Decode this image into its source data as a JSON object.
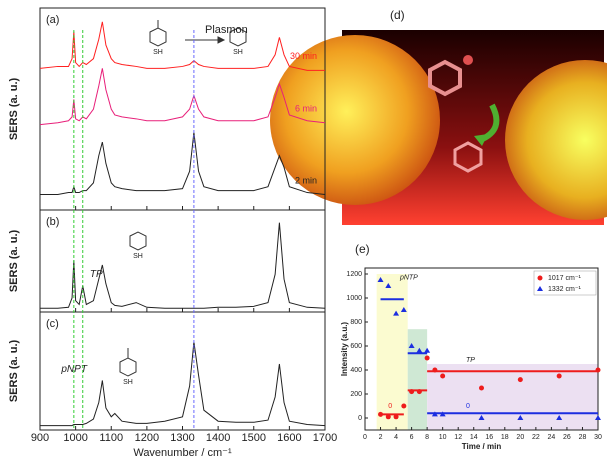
{
  "chart_data": [
    {
      "type": "line",
      "label": "(a)",
      "ylabel": "SERS (a. u.)",
      "ylim": [
        0,
        100
      ],
      "annotation": "Plasmon",
      "molecule_labels": [
        "SH",
        "SH"
      ],
      "x": [
        900,
        950,
        980,
        990,
        995,
        1000,
        1010,
        1020,
        1030,
        1050,
        1065,
        1075,
        1085,
        1100,
        1110,
        1130,
        1170,
        1200,
        1250,
        1300,
        1320,
        1332,
        1345,
        1360,
        1400,
        1450,
        1500,
        1540,
        1560,
        1572,
        1585,
        1600,
        1650,
        1700
      ],
      "reference_lines": [
        {
          "value": 995,
          "color": "#33cc33"
        },
        {
          "value": 1020,
          "color": "#33cc33"
        },
        {
          "value": 1332,
          "color": "#6a6aff"
        }
      ],
      "series": [
        {
          "name": "30 min",
          "color": "#ff2020",
          "values": [
            73,
            74,
            74,
            78,
            92,
            76,
            74,
            76,
            75,
            78,
            88,
            97,
            85,
            78,
            76,
            75,
            74,
            73,
            73,
            74,
            75,
            77,
            75,
            74,
            73,
            73,
            73,
            74,
            80,
            89,
            80,
            74,
            72,
            72
          ]
        },
        {
          "name": "6 min",
          "color": "#e8207a",
          "values": [
            44,
            45,
            46,
            48,
            57,
            47,
            46,
            48,
            47,
            52,
            64,
            73,
            62,
            52,
            49,
            48,
            47,
            46,
            46,
            48,
            52,
            59,
            52,
            48,
            46,
            46,
            46,
            48,
            58,
            65,
            58,
            49,
            46,
            45
          ]
        },
        {
          "name": "2 min",
          "color": "#222222",
          "values": [
            8,
            8,
            9,
            9,
            12,
            9,
            9,
            10,
            10,
            14,
            28,
            35,
            24,
            14,
            12,
            11,
            10,
            10,
            10,
            11,
            20,
            40,
            20,
            12,
            10,
            10,
            10,
            12,
            22,
            28,
            22,
            12,
            9,
            8
          ]
        }
      ]
    },
    {
      "type": "line",
      "label": "(b)",
      "ylabel": "SERS (a. u.)",
      "ylim": [
        0,
        100
      ],
      "molecule_labels": [
        "SH"
      ],
      "x": [
        900,
        950,
        980,
        990,
        995,
        1000,
        1010,
        1020,
        1030,
        1050,
        1065,
        1075,
        1085,
        1100,
        1110,
        1130,
        1170,
        1200,
        1250,
        1300,
        1320,
        1332,
        1345,
        1360,
        1400,
        1450,
        1500,
        1540,
        1560,
        1572,
        1585,
        1600,
        1650,
        1700
      ],
      "series": [
        {
          "name": "TP",
          "color": "#222222",
          "values": [
            4,
            4,
            5,
            15,
            55,
            12,
            8,
            28,
            8,
            12,
            35,
            50,
            30,
            10,
            7,
            6,
            10,
            5,
            4,
            4,
            4,
            4,
            4,
            4,
            5,
            5,
            6,
            10,
            40,
            95,
            35,
            10,
            5,
            4
          ]
        }
      ]
    },
    {
      "type": "line",
      "label": "(c)",
      "ylabel": "SERS (a. u.)",
      "ylim": [
        0,
        100
      ],
      "molecule_labels": [
        "SH"
      ],
      "xlabel": "Wavenumber / cm⁻¹",
      "xlim": [
        900,
        1700
      ],
      "xticks": [
        900,
        1000,
        1100,
        1200,
        1300,
        1400,
        1500,
        1600,
        1700
      ],
      "x": [
        900,
        950,
        980,
        990,
        995,
        1000,
        1010,
        1020,
        1030,
        1050,
        1065,
        1075,
        1085,
        1100,
        1110,
        1130,
        1170,
        1200,
        1250,
        1300,
        1320,
        1332,
        1345,
        1360,
        1400,
        1450,
        1500,
        1540,
        1560,
        1572,
        1585,
        1600,
        1650,
        1700
      ],
      "series": [
        {
          "name": "pNPT",
          "color": "#222222",
          "values": [
            4,
            4,
            4,
            4,
            5,
            5,
            5,
            5,
            6,
            10,
            25,
            45,
            20,
            12,
            15,
            8,
            6,
            6,
            8,
            12,
            40,
            80,
            50,
            18,
            8,
            7,
            7,
            9,
            30,
            60,
            25,
            8,
            5,
            4
          ]
        }
      ]
    },
    {
      "type": "scatter",
      "label": "(e)",
      "xlabel": "Time / min",
      "ylabel": "Intensity (a.u.)",
      "xlim": [
        0,
        30
      ],
      "xticks": [
        0,
        2,
        4,
        6,
        8,
        10,
        12,
        14,
        16,
        18,
        20,
        22,
        24,
        26,
        28,
        30
      ],
      "ylim": [
        -100,
        1250
      ],
      "yticks": [
        0,
        200,
        400,
        600,
        800,
        1000,
        1200
      ],
      "legend": "upper right",
      "annotations": [
        "pNTP",
        "TP",
        "0",
        "0"
      ],
      "regions": [
        {
          "x": [
            1.5,
            5.5
          ],
          "y": [
            -100,
            1200
          ],
          "color": "#fbfbd0"
        },
        {
          "x": [
            5.5,
            8
          ],
          "y": [
            -100,
            740
          ],
          "color": "#cfe8d4"
        },
        {
          "x": [
            8,
            30
          ],
          "y": [
            -100,
            450
          ],
          "color": "#ece0f2"
        }
      ],
      "series": [
        {
          "name": "1017 cm⁻¹",
          "color": "#ee1c1c",
          "marker": "circle",
          "x": [
            2,
            3,
            4,
            5,
            6,
            7,
            8,
            9,
            10,
            15,
            20,
            25,
            30
          ],
          "values": [
            30,
            10,
            10,
            100,
            220,
            220,
            500,
            400,
            350,
            250,
            320,
            350,
            400
          ],
          "fits": [
            {
              "x": [
                2,
                5
              ],
              "value": 30
            },
            {
              "x": [
                5.5,
                8
              ],
              "value": 230
            },
            {
              "x": [
                8,
                30
              ],
              "value": 390
            }
          ]
        },
        {
          "name": "1332 cm⁻¹",
          "color": "#1c2ee0",
          "marker": "triangle",
          "x": [
            2,
            3,
            4,
            5,
            6,
            7,
            8,
            9,
            10,
            15,
            20,
            25,
            30
          ],
          "values": [
            1150,
            1100,
            870,
            900,
            600,
            560,
            560,
            30,
            30,
            0,
            0,
            0,
            0
          ],
          "fits": [
            {
              "x": [
                2,
                5
              ],
              "value": 990
            },
            {
              "x": [
                5.5,
                8
              ],
              "value": 540
            },
            {
              "x": [
                8,
                30
              ],
              "value": 40
            }
          ]
        }
      ]
    }
  ],
  "image": {
    "label": "(d)"
  }
}
